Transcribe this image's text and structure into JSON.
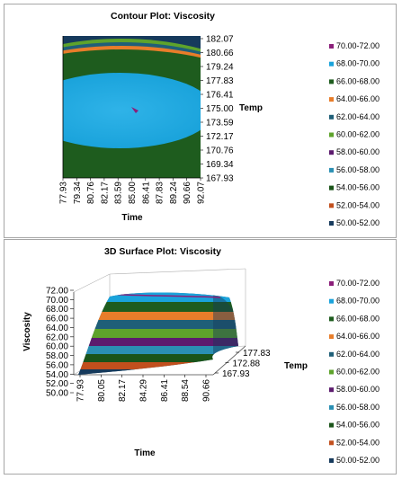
{
  "chart_data": [
    {
      "type": "contour",
      "title": "Contour Plot: Viscosity",
      "xlabel": "Time",
      "ylabel": "Temp",
      "x_ticks": [
        "77.93",
        "79.34",
        "80.76",
        "82.17",
        "83.59",
        "85.00",
        "86.41",
        "87.83",
        "89.24",
        "90.66",
        "92.07"
      ],
      "y_ticks": [
        "182.07",
        "180.66",
        "179.24",
        "177.83",
        "176.41",
        "175.00",
        "173.59",
        "172.17",
        "170.76",
        "169.34",
        "167.93"
      ],
      "xlim": [
        77.93,
        92.07
      ],
      "ylim": [
        167.93,
        182.07
      ],
      "legend_position": "right",
      "series": [
        {
          "name": "70.00-72.00",
          "color": "#8b1f7a"
        },
        {
          "name": "68.00-70.00",
          "color": "#1aa3db"
        },
        {
          "name": "66.00-68.00",
          "color": "#1e5c1e"
        },
        {
          "name": "64.00-66.00",
          "color": "#e87d2a"
        },
        {
          "name": "62.00-64.00",
          "color": "#1f5f78"
        },
        {
          "name": "60.00-62.00",
          "color": "#5ea32b"
        },
        {
          "name": "58.00-60.00",
          "color": "#5c1b6e"
        },
        {
          "name": "56.00-58.00",
          "color": "#2a8fb3"
        },
        {
          "name": "54.00-56.00",
          "color": "#1a5419"
        },
        {
          "name": "52.00-54.00",
          "color": "#c24f1d"
        },
        {
          "name": "50.00-52.00",
          "color": "#163a5c"
        }
      ]
    },
    {
      "type": "surface",
      "title": "3D Surface Plot: Viscosity",
      "xlabel": "Time",
      "ylabel": "Temp",
      "zlabel": "Viscosity",
      "x_ticks": [
        "77.93",
        "80.05",
        "82.17",
        "84.29",
        "86.41",
        "88.54",
        "90.66"
      ],
      "y_ticks": [
        "177.83",
        "172.88",
        "167.93"
      ],
      "z_ticks": [
        "72.00",
        "70.00",
        "68.00",
        "66.00",
        "64.00",
        "62.00",
        "60.00",
        "58.00",
        "56.00",
        "54.00",
        "52.00",
        "50.00"
      ],
      "zlim": [
        50,
        72
      ],
      "legend_position": "right",
      "series": [
        {
          "name": "70.00-72.00",
          "color": "#8b1f7a"
        },
        {
          "name": "68.00-70.00",
          "color": "#1aa3db"
        },
        {
          "name": "66.00-68.00",
          "color": "#1e5c1e"
        },
        {
          "name": "64.00-66.00",
          "color": "#e87d2a"
        },
        {
          "name": "62.00-64.00",
          "color": "#1f5f78"
        },
        {
          "name": "60.00-62.00",
          "color": "#5ea32b"
        },
        {
          "name": "58.00-60.00",
          "color": "#5c1b6e"
        },
        {
          "name": "56.00-58.00",
          "color": "#2a8fb3"
        },
        {
          "name": "54.00-56.00",
          "color": "#1a5419"
        },
        {
          "name": "52.00-54.00",
          "color": "#c24f1d"
        },
        {
          "name": "50.00-52.00",
          "color": "#163a5c"
        }
      ]
    }
  ]
}
